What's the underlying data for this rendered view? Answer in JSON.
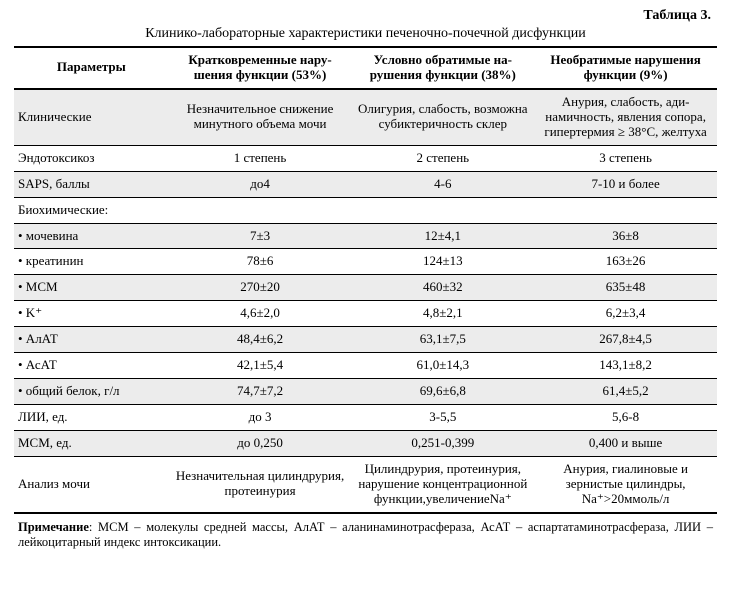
{
  "table_label": "Таблица 3.",
  "caption": "Клинико-лабораторные характеристики печеночно-почечной дисфункции",
  "columns": [
    "Параметры",
    "Кратковременные нару­шения функции (53%)",
    "Условно обратимые на­рушения функции (38%)",
    "Необратимые наруше­ния функции (9%)"
  ],
  "rows": [
    {
      "alt": true,
      "cells": [
        "Клинические",
        "Незначительное снижение минутного объема мочи",
        "Олигурия, слабость, возможна субикте­ричность склер",
        "Анурия, слабость, ади­намичность, явле­ния сопора, гипертер­мия ≥ 38°С, желтуха"
      ]
    },
    {
      "alt": false,
      "cells": [
        "Эндотоксикоз",
        "1 степень",
        "2 степень",
        "3 степень"
      ]
    },
    {
      "alt": true,
      "cells": [
        "SAPS, баллы",
        "до4",
        "4-6",
        "7-10 и более"
      ]
    },
    {
      "alt": false,
      "cells": [
        "Биохимические:",
        "",
        "",
        ""
      ]
    },
    {
      "alt": true,
      "cells": [
        "• мочевина",
        "7±3",
        "12±4,1",
        "36±8"
      ]
    },
    {
      "alt": false,
      "cells": [
        "• креатинин",
        "78±6",
        "124±13",
        "163±26"
      ]
    },
    {
      "alt": true,
      "cells": [
        "• МСМ",
        "270±20",
        "460±32",
        "635±48"
      ]
    },
    {
      "alt": false,
      "cells": [
        "• K⁺",
        "4,6±2,0",
        "4,8±2,1",
        "6,2±3,4"
      ]
    },
    {
      "alt": true,
      "cells": [
        "• АлАТ",
        "48,4±6,2",
        "63,1±7,5",
        "267,8±4,5"
      ]
    },
    {
      "alt": false,
      "cells": [
        "• АсАТ",
        "42,1±5,4",
        "61,0±14,3",
        "143,1±8,2"
      ]
    },
    {
      "alt": true,
      "cells": [
        "• общий белок, г/л",
        "74,7±7,2",
        "69,6±6,8",
        "61,4±5,2"
      ]
    },
    {
      "alt": false,
      "cells": [
        "ЛИИ, ед.",
        "до 3",
        "3-5,5",
        "5,6-8"
      ]
    },
    {
      "alt": true,
      "cells": [
        "МСМ, ед.",
        "до 0,250",
        "0,251-0,399",
        "0,400 и выше"
      ]
    },
    {
      "alt": false,
      "cells": [
        "Анализ мочи",
        "Незначительная цилин­друрия, протеинурия",
        "Цилиндрурия, протеи­нурия, нарушение концентрационной функции,увеличениеNa⁺",
        "Анурия, гиалиновые и зернистые цилин­дры, Na⁺>20ммоль/л"
      ]
    }
  ],
  "note_label": "Примечание",
  "note_text": ": МСМ – молекулы средней массы, АлАТ – аланинаминотрасфераза, АсАТ – аспартатаминотрас­фераза, ЛИИ – лейкоцитарный индекс интоксикации.",
  "col_widths": [
    "22%",
    "26%",
    "26%",
    "26%"
  ],
  "colors": {
    "bg": "#ffffff",
    "alt_row": "#ececec",
    "border": "#000000",
    "text": "#000000"
  },
  "fonts": {
    "body_pt": 13,
    "caption_pt": 14,
    "note_pt": 12.5,
    "family": "Times New Roman"
  }
}
